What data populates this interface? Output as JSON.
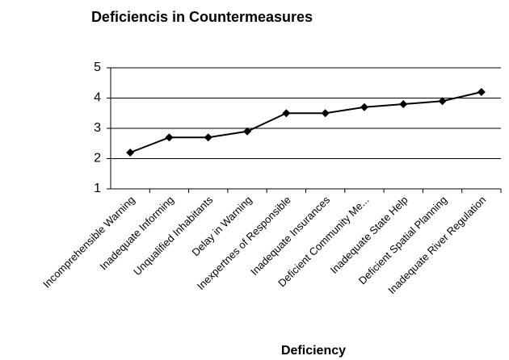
{
  "chart_data": {
    "type": "line",
    "title": "Deficiencis in Countermeasures",
    "x_label": "Deficiency",
    "categories": [
      "Incomprehensible Warning",
      "Inadequate Informing",
      "Unqualified Inhabitants",
      "Delay in Warning",
      "Inexpertnes of Responsible",
      "Inadequate Insurances",
      "Deficient Community Me...",
      "Inadequate State Help",
      "Deficient Spatial Planning",
      "Inadequate River Regulation"
    ],
    "values": [
      2.2,
      2.7,
      2.7,
      2.9,
      3.5,
      3.5,
      3.7,
      3.8,
      3.9,
      4.2
    ],
    "color": "#000000",
    "ylim": [
      1,
      5
    ],
    "yticks": [
      1,
      2,
      3,
      4,
      5
    ],
    "grid": true
  }
}
